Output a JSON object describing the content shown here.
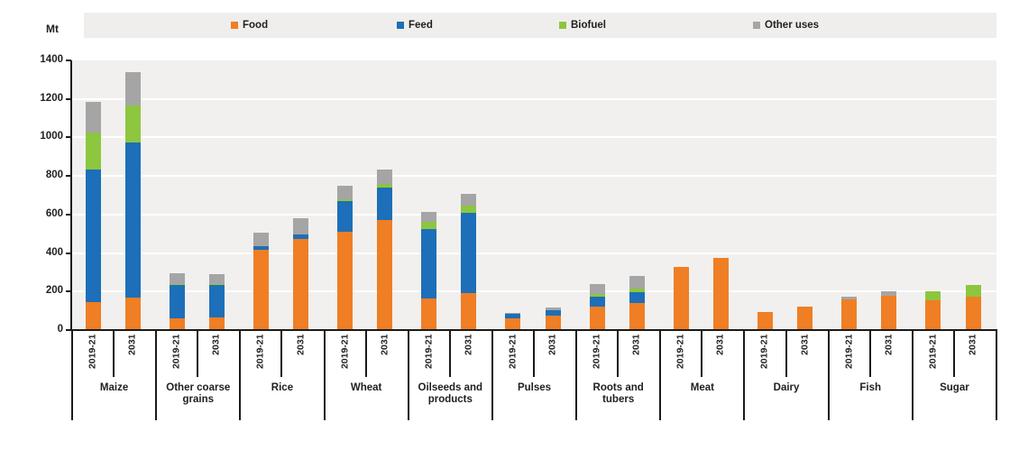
{
  "chart": {
    "unit_label": "Mt",
    "plot_background": "#f1f0ee",
    "legend_background": "#efeeec",
    "gridline_color": "#ffffff",
    "axis_color": "#1a1a1a"
  },
  "chart_data": {
    "type": "bar",
    "stacked": true,
    "title": "",
    "ylabel": "Mt",
    "ylim": [
      0,
      1400
    ],
    "ytick_step": 200,
    "yticks": [
      0,
      200,
      400,
      600,
      800,
      1000,
      1200,
      1400
    ],
    "grid": true,
    "legend_position": "top",
    "series_names": [
      "Food",
      "Feed",
      "Biofuel",
      "Other uses"
    ],
    "series_colors": {
      "Food": "#f07e24",
      "Feed": "#1c6fb8",
      "Biofuel": "#8dc63f",
      "Other uses": "#a5a5a5"
    },
    "bar_periods": [
      "2019-21",
      "2031"
    ],
    "groups": [
      {
        "category": "Maize",
        "bars": [
          {
            "period": "2019-21",
            "values": {
              "Food": 145,
              "Feed": 690,
              "Biofuel": 190,
              "Other uses": 160
            }
          },
          {
            "period": "2031",
            "values": {
              "Food": 170,
              "Feed": 805,
              "Biofuel": 190,
              "Other uses": 175
            }
          }
        ]
      },
      {
        "category": "Other coarse grains",
        "bars": [
          {
            "period": "2019-21",
            "values": {
              "Food": 60,
              "Feed": 175,
              "Biofuel": 5,
              "Other uses": 55
            }
          },
          {
            "period": "2031",
            "values": {
              "Food": 65,
              "Feed": 170,
              "Biofuel": 5,
              "Other uses": 50
            }
          }
        ]
      },
      {
        "category": "Rice",
        "bars": [
          {
            "period": "2019-21",
            "values": {
              "Food": 415,
              "Feed": 20,
              "Biofuel": 0,
              "Other uses": 70
            }
          },
          {
            "period": "2031",
            "values": {
              "Food": 475,
              "Feed": 20,
              "Biofuel": 0,
              "Other uses": 85
            }
          }
        ]
      },
      {
        "category": "Wheat",
        "bars": [
          {
            "period": "2019-21",
            "values": {
              "Food": 510,
              "Feed": 160,
              "Biofuel": 10,
              "Other uses": 70
            }
          },
          {
            "period": "2031",
            "values": {
              "Food": 570,
              "Feed": 170,
              "Biofuel": 20,
              "Other uses": 75
            }
          }
        ]
      },
      {
        "category": "Oilseeds and products",
        "bars": [
          {
            "period": "2019-21",
            "values": {
              "Food": 165,
              "Feed": 360,
              "Biofuel": 35,
              "Other uses": 55
            }
          },
          {
            "period": "2031",
            "values": {
              "Food": 190,
              "Feed": 420,
              "Biofuel": 35,
              "Other uses": 60
            }
          }
        ]
      },
      {
        "category": "Pulses",
        "bars": [
          {
            "period": "2019-21",
            "values": {
              "Food": 60,
              "Feed": 25,
              "Biofuel": 0,
              "Other uses": 5
            }
          },
          {
            "period": "2031",
            "values": {
              "Food": 75,
              "Feed": 30,
              "Biofuel": 0,
              "Other uses": 10
            }
          }
        ]
      },
      {
        "category": "Roots and tubers",
        "bars": [
          {
            "period": "2019-21",
            "values": {
              "Food": 120,
              "Feed": 55,
              "Biofuel": 10,
              "Other uses": 55
            }
          },
          {
            "period": "2031",
            "values": {
              "Food": 140,
              "Feed": 55,
              "Biofuel": 20,
              "Other uses": 65
            }
          }
        ]
      },
      {
        "category": "Meat",
        "bars": [
          {
            "period": "2019-21",
            "values": {
              "Food": 330,
              "Feed": 0,
              "Biofuel": 0,
              "Other uses": 0
            }
          },
          {
            "period": "2031",
            "values": {
              "Food": 375,
              "Feed": 0,
              "Biofuel": 0,
              "Other uses": 0
            }
          }
        ]
      },
      {
        "category": "Dairy",
        "bars": [
          {
            "period": "2019-21",
            "values": {
              "Food": 95,
              "Feed": 0,
              "Biofuel": 0,
              "Other uses": 0
            }
          },
          {
            "period": "2031",
            "values": {
              "Food": 120,
              "Feed": 0,
              "Biofuel": 0,
              "Other uses": 0
            }
          }
        ]
      },
      {
        "category": "Fish",
        "bars": [
          {
            "period": "2019-21",
            "values": {
              "Food": 160,
              "Feed": 0,
              "Biofuel": 0,
              "Other uses": 15
            }
          },
          {
            "period": "2031",
            "values": {
              "Food": 180,
              "Feed": 0,
              "Biofuel": 0,
              "Other uses": 20
            }
          }
        ]
      },
      {
        "category": "Sugar",
        "bars": [
          {
            "period": "2019-21",
            "values": {
              "Food": 155,
              "Feed": 0,
              "Biofuel": 45,
              "Other uses": 0
            }
          },
          {
            "period": "2031",
            "values": {
              "Food": 175,
              "Feed": 0,
              "Biofuel": 60,
              "Other uses": 0
            }
          }
        ]
      }
    ]
  }
}
